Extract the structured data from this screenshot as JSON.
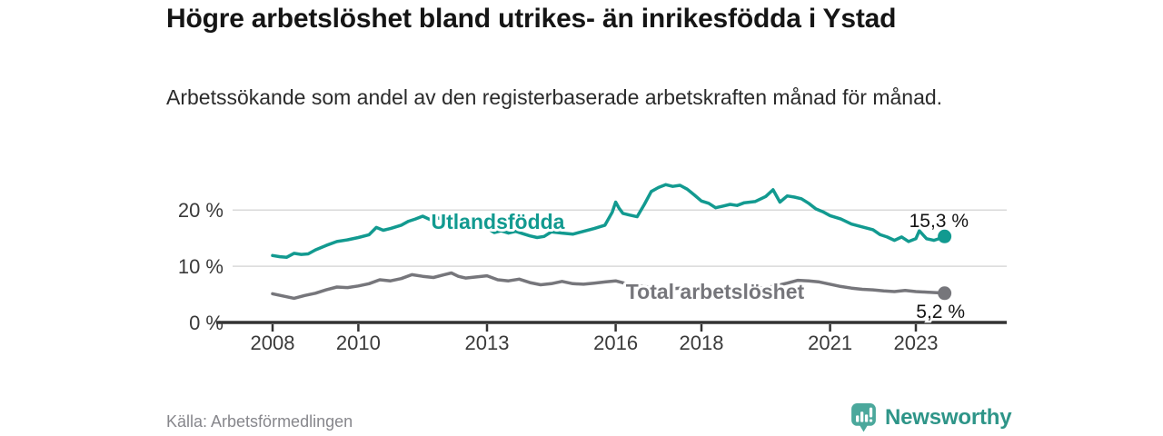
{
  "header": {
    "title": "Högre arbetslöshet bland utrikes- än inrikesfödda i Ystad",
    "subtitle": "Arbetssökande som andel av den registerbaserade arbetskraften månad för månad."
  },
  "footer": {
    "source": "Källa: Arbetsförmedlingen",
    "brand": "Newsworthy",
    "brand_icon": "newsworthy-bar-chart-bubble-icon"
  },
  "colors": {
    "accent_teal": "#129a90",
    "series_gray": "#76767b",
    "axis": "#333333",
    "grid": "#d9d9d9",
    "axis_label": "#3a3a3a",
    "value_label": "#141414",
    "logo_icon_teal": "#4ba89c",
    "logo_text_teal": "#2e9588"
  },
  "chart_data": {
    "type": "line",
    "title": "Högre arbetslöshet bland utrikes- än inrikesfödda i Ystad",
    "subtitle": "Arbetssökande som andel av den registerbaserade arbetskraften månad för månad.",
    "grid": "horizontal",
    "legend_position": "inline-labels",
    "unit": "%",
    "x_axis": {
      "range": [
        2007.8,
        2024.2
      ],
      "ticks": [
        {
          "value": 2008,
          "label": "2008"
        },
        {
          "value": 2010,
          "label": "2010"
        },
        {
          "value": 2013,
          "label": "2013"
        },
        {
          "value": 2016,
          "label": "2016"
        },
        {
          "value": 2018,
          "label": "2018"
        },
        {
          "value": 2021,
          "label": "2021"
        },
        {
          "value": 2023,
          "label": "2023"
        }
      ]
    },
    "y_axis": {
      "range": [
        0,
        27
      ],
      "ticks": [
        {
          "value": 0,
          "label": "0 %"
        },
        {
          "value": 10,
          "label": "10 %"
        },
        {
          "value": 20,
          "label": "20 %"
        }
      ]
    },
    "series": [
      {
        "name": "Utlandsfödda",
        "color": "#129a90",
        "end_label": "15,3 %",
        "end_value": 15.3,
        "points": [
          [
            2008.0,
            11.9
          ],
          [
            2008.17,
            11.7
          ],
          [
            2008.33,
            11.6
          ],
          [
            2008.5,
            12.3
          ],
          [
            2008.67,
            12.1
          ],
          [
            2008.83,
            12.2
          ],
          [
            2009.0,
            12.9
          ],
          [
            2009.25,
            13.7
          ],
          [
            2009.5,
            14.4
          ],
          [
            2009.75,
            14.7
          ],
          [
            2010.0,
            15.1
          ],
          [
            2010.25,
            15.6
          ],
          [
            2010.42,
            16.9
          ],
          [
            2010.58,
            16.4
          ],
          [
            2010.75,
            16.7
          ],
          [
            2011.0,
            17.3
          ],
          [
            2011.17,
            18.0
          ],
          [
            2011.33,
            18.4
          ],
          [
            2011.5,
            18.9
          ],
          [
            2011.67,
            18.3
          ],
          [
            2011.83,
            18.6
          ],
          [
            2012.0,
            18.4
          ],
          [
            2012.25,
            18.5
          ],
          [
            2012.5,
            18.4
          ],
          [
            2012.75,
            17.9
          ],
          [
            2013.0,
            16.8
          ],
          [
            2013.17,
            16.0
          ],
          [
            2013.33,
            16.3
          ],
          [
            2013.5,
            15.9
          ],
          [
            2013.67,
            16.2
          ],
          [
            2013.83,
            15.8
          ],
          [
            2014.0,
            15.4
          ],
          [
            2014.17,
            15.1
          ],
          [
            2014.33,
            15.3
          ],
          [
            2014.5,
            16.1
          ],
          [
            2014.75,
            15.9
          ],
          [
            2015.0,
            15.7
          ],
          [
            2015.25,
            16.2
          ],
          [
            2015.5,
            16.7
          ],
          [
            2015.75,
            17.3
          ],
          [
            2015.92,
            19.6
          ],
          [
            2016.0,
            21.4
          ],
          [
            2016.08,
            20.3
          ],
          [
            2016.17,
            19.4
          ],
          [
            2016.33,
            19.1
          ],
          [
            2016.5,
            18.8
          ],
          [
            2016.67,
            21.0
          ],
          [
            2016.83,
            23.3
          ],
          [
            2017.0,
            24.0
          ],
          [
            2017.17,
            24.5
          ],
          [
            2017.33,
            24.2
          ],
          [
            2017.5,
            24.4
          ],
          [
            2017.67,
            23.7
          ],
          [
            2017.83,
            22.7
          ],
          [
            2018.0,
            21.6
          ],
          [
            2018.17,
            21.2
          ],
          [
            2018.33,
            20.4
          ],
          [
            2018.5,
            20.7
          ],
          [
            2018.67,
            21.0
          ],
          [
            2018.83,
            20.8
          ],
          [
            2019.0,
            21.3
          ],
          [
            2019.25,
            21.5
          ],
          [
            2019.5,
            22.4
          ],
          [
            2019.67,
            23.6
          ],
          [
            2019.83,
            21.4
          ],
          [
            2020.0,
            22.5
          ],
          [
            2020.17,
            22.3
          ],
          [
            2020.33,
            22.0
          ],
          [
            2020.5,
            21.2
          ],
          [
            2020.67,
            20.2
          ],
          [
            2020.83,
            19.7
          ],
          [
            2021.0,
            19.0
          ],
          [
            2021.25,
            18.4
          ],
          [
            2021.5,
            17.5
          ],
          [
            2021.75,
            17.0
          ],
          [
            2022.0,
            16.5
          ],
          [
            2022.17,
            15.6
          ],
          [
            2022.33,
            15.2
          ],
          [
            2022.5,
            14.6
          ],
          [
            2022.67,
            15.2
          ],
          [
            2022.83,
            14.4
          ],
          [
            2023.0,
            14.9
          ],
          [
            2023.08,
            16.3
          ],
          [
            2023.25,
            14.9
          ],
          [
            2023.42,
            14.6
          ],
          [
            2023.58,
            15.0
          ],
          [
            2023.67,
            15.3
          ]
        ]
      },
      {
        "name": "Total arbetslöshet",
        "color": "#76767b",
        "end_label": "5,2 %",
        "end_value": 5.2,
        "points": [
          [
            2008.0,
            5.1
          ],
          [
            2008.25,
            4.7
          ],
          [
            2008.5,
            4.3
          ],
          [
            2008.75,
            4.8
          ],
          [
            2009.0,
            5.2
          ],
          [
            2009.25,
            5.8
          ],
          [
            2009.5,
            6.3
          ],
          [
            2009.75,
            6.2
          ],
          [
            2010.0,
            6.5
          ],
          [
            2010.25,
            6.9
          ],
          [
            2010.5,
            7.6
          ],
          [
            2010.75,
            7.4
          ],
          [
            2011.0,
            7.8
          ],
          [
            2011.25,
            8.5
          ],
          [
            2011.5,
            8.2
          ],
          [
            2011.75,
            8.0
          ],
          [
            2012.0,
            8.5
          ],
          [
            2012.17,
            8.8
          ],
          [
            2012.33,
            8.2
          ],
          [
            2012.5,
            7.9
          ],
          [
            2012.75,
            8.1
          ],
          [
            2013.0,
            8.3
          ],
          [
            2013.25,
            7.6
          ],
          [
            2013.5,
            7.4
          ],
          [
            2013.75,
            7.7
          ],
          [
            2014.0,
            7.1
          ],
          [
            2014.25,
            6.7
          ],
          [
            2014.5,
            6.9
          ],
          [
            2014.75,
            7.3
          ],
          [
            2015.0,
            6.9
          ],
          [
            2015.25,
            6.8
          ],
          [
            2015.5,
            7.0
          ],
          [
            2015.75,
            7.2
          ],
          [
            2016.0,
            7.4
          ],
          [
            2016.25,
            6.9
          ],
          [
            2016.5,
            6.6
          ],
          [
            2016.75,
            6.3
          ],
          [
            2017.0,
            6.1
          ],
          [
            2017.33,
            6.0
          ],
          [
            2017.67,
            6.2
          ],
          [
            2018.0,
            6.0
          ],
          [
            2018.33,
            5.9
          ],
          [
            2018.67,
            6.1
          ],
          [
            2019.0,
            6.2
          ],
          [
            2019.33,
            6.1
          ],
          [
            2019.67,
            6.4
          ],
          [
            2020.0,
            7.0
          ],
          [
            2020.25,
            7.5
          ],
          [
            2020.5,
            7.4
          ],
          [
            2020.75,
            7.2
          ],
          [
            2021.0,
            6.8
          ],
          [
            2021.25,
            6.4
          ],
          [
            2021.5,
            6.1
          ],
          [
            2021.75,
            5.9
          ],
          [
            2022.0,
            5.8
          ],
          [
            2022.25,
            5.6
          ],
          [
            2022.5,
            5.5
          ],
          [
            2022.75,
            5.7
          ],
          [
            2023.0,
            5.5
          ],
          [
            2023.25,
            5.4
          ],
          [
            2023.5,
            5.3
          ],
          [
            2023.67,
            5.2
          ]
        ]
      }
    ]
  }
}
